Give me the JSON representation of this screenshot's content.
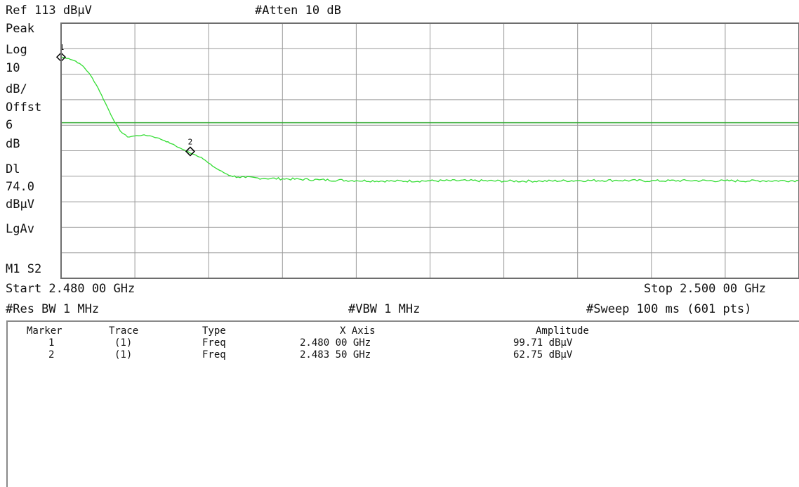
{
  "header": {
    "ref_level": "Ref 113 dBμV",
    "attenuation": "#Atten 10 dB"
  },
  "side_labels": {
    "detector": "Peak",
    "scale_type": "Log",
    "scale_value": "10",
    "scale_unit": "dB/",
    "offset_label": "Offst",
    "offset_value": "6",
    "offset_unit": "dB",
    "display_line_label": "Dl",
    "display_line_value": "74.0",
    "display_line_unit": "dBμV",
    "average_mode": "LgAv",
    "marker_status": "M1  S2"
  },
  "footer": {
    "start": "Start 2.480 00 GHz",
    "stop": "Stop 2.500 00 GHz",
    "rbw": "#Res BW 1 MHz",
    "vbw": "#VBW 1 MHz",
    "sweep": "#Sweep 100 ms (601 pts)"
  },
  "marker_table": {
    "headers": [
      "Marker",
      "Trace",
      "Type",
      "X Axis",
      "Amplitude"
    ],
    "rows": [
      [
        "1",
        "(1)",
        "Freq",
        "2.480 00 GHz",
        "99.71 dBμV"
      ],
      [
        "2",
        "(1)",
        "Freq",
        "2.483 50 GHz",
        "62.75 dBμV"
      ]
    ]
  },
  "colors": {
    "trace": "#33dd33",
    "display_line": "#33aa33",
    "grid": "#9a9a9a",
    "frame": "#6e6e6e"
  },
  "chart_data": {
    "type": "line",
    "xlim": [
      2.48,
      2.5
    ],
    "ylim": [
      13,
      113
    ],
    "x_unit": "GHz",
    "y_unit": "dBμV",
    "grid": true,
    "display_line": 74.0,
    "series": [
      {
        "x": [
          2.48,
          2.4802,
          2.4804,
          2.4806,
          2.4808,
          2.481,
          2.4812,
          2.4814,
          2.4816,
          2.4818,
          2.482,
          2.4822,
          2.4824,
          2.4826,
          2.4828,
          2.483,
          2.4832,
          2.4834,
          2.4836,
          2.4838,
          2.484,
          2.4842,
          2.4844,
          2.4846,
          2.4848,
          2.485,
          2.4855,
          2.486,
          2.487,
          2.488,
          2.489,
          2.49,
          2.491,
          2.492,
          2.493,
          2.494,
          2.495,
          2.496,
          2.497,
          2.498,
          2.499,
          2.5
        ],
        "y": [
          99.7,
          99.2,
          98.1,
          96.1,
          92.6,
          87.7,
          81.7,
          75.7,
          70.8,
          68.4,
          68.8,
          69.1,
          68.9,
          68.1,
          67.0,
          65.7,
          64.2,
          62.8,
          61.6,
          60.4,
          58.1,
          56.1,
          54.5,
          53.2,
          52.7,
          52.5,
          52.2,
          52.0,
          51.6,
          51.3,
          51.1,
          51.2,
          51.3,
          51.1,
          51.1,
          51.3,
          51.4,
          51.2,
          51.3,
          51.2,
          51.2,
          51.3
        ]
      }
    ],
    "markers": [
      {
        "label": "1",
        "x": 2.48,
        "y": 99.71
      },
      {
        "label": "2",
        "x": 2.4835,
        "y": 62.75
      }
    ]
  }
}
